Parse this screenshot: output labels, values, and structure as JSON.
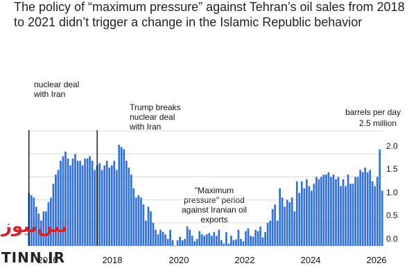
{
  "title": "The policy of “maximum pressure” against Tehran’s oil sales from 2018 to 2021 didn’t trigger a change in the Islamic Republic behavior",
  "watermark": {
    "fa": "تین‌نیوز",
    "en": "TINN.IR"
  },
  "colors": {
    "bar": "#2f6fdf",
    "grid": "#d9d9d9",
    "event_line": "#111111"
  },
  "chart_data": {
    "type": "bar",
    "unit": "barrels per day",
    "ylim": [
      0,
      2.5
    ],
    "yticks": [
      "2.5 million",
      "2.0",
      "1.5",
      "1.0",
      "0.5",
      "0.0"
    ],
    "ytick_values": [
      2.5,
      2.0,
      1.5,
      1.0,
      0.5,
      0.0
    ],
    "x_range": [
      "2016-01",
      "2026-02"
    ],
    "xticks": [
      "2016",
      "2018",
      "2020",
      "2022",
      "2024",
      "2026"
    ],
    "grid": true,
    "annotations": [
      {
        "text": "nuclear deal\nwith Iran",
        "date": "2016-01"
      },
      {
        "text": "Trump breaks\nnuclear deal\nwith Iran",
        "date": "2018-05"
      },
      {
        "text": "\"Maximum\npressure\" period\nagainst Iranian oil\nexports"
      },
      {
        "text": "barrels per day"
      }
    ],
    "series": [
      {
        "values": [
          1.15,
          1.1,
          1.05,
          0.85,
          0.7,
          0.55,
          0.75,
          0.75,
          0.95,
          1.05,
          1.35,
          1.55,
          1.65,
          1.85,
          1.95,
          2.05,
          1.9,
          1.75,
          1.9,
          2.0,
          1.85,
          1.85,
          1.75,
          1.9,
          1.9,
          1.95,
          1.85,
          1.65,
          1.75,
          1.8,
          1.65,
          1.75,
          1.85,
          1.7,
          1.75,
          1.85,
          1.65,
          2.2,
          2.15,
          2.1,
          1.85,
          1.7,
          1.55,
          1.25,
          1.05,
          1.1,
          1.05,
          0.9,
          0.55,
          0.85,
          0.75,
          0.5,
          0.35,
          0.25,
          0.35,
          0.3,
          0.25,
          0.15,
          0.35,
          0.12,
          0.0,
          0.12,
          0.2,
          0.12,
          0.15,
          0.42,
          0.35,
          0.22,
          0.1,
          0.15,
          0.32,
          0.25,
          0.22,
          0.25,
          0.28,
          0.22,
          0.3,
          0.22,
          0.35,
          0.12,
          0.05,
          0.3,
          0.05,
          0.22,
          0.12,
          0.14,
          0.35,
          0.15,
          0.1,
          0.32,
          0.38,
          0.22,
          0.2,
          0.35,
          0.32,
          0.42,
          0.18,
          0.3,
          0.5,
          0.55,
          0.8,
          0.9,
          0.55,
          1.25,
          1.05,
          0.85,
          1.0,
          0.95,
          1.05,
          0.75,
          1.4,
          1.15,
          1.4,
          1.25,
          1.45,
          1.3,
          1.2,
          1.35,
          1.5,
          1.45,
          1.5,
          1.55,
          1.55,
          1.6,
          1.5,
          1.55,
          1.45,
          1.5,
          1.3,
          1.45,
          1.3,
          1.55,
          1.35,
          1.35,
          1.5,
          1.5,
          1.65,
          1.6,
          1.7,
          1.6,
          1.65,
          1.4,
          1.3,
          1.5,
          2.1,
          1.2
        ]
      }
    ]
  }
}
